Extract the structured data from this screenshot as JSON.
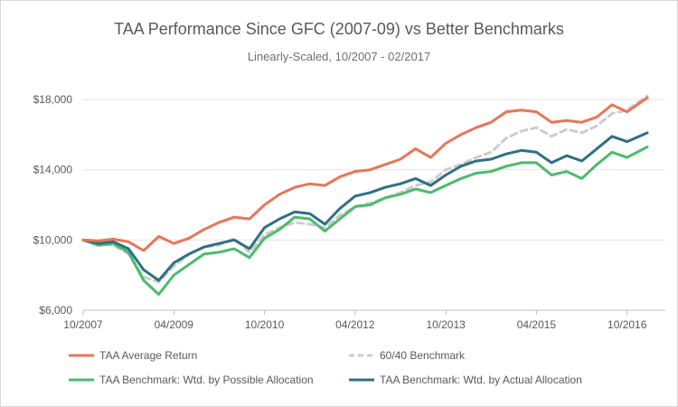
{
  "chart_data": {
    "type": "line",
    "title": "TAA Performance Since GFC (2007-09) vs Better Benchmarks",
    "subtitle": "Linearly-Scaled, 10/2007 - 02/2017",
    "xlabel": "",
    "ylabel": "",
    "x_ticks": [
      "10/2007",
      "04/2009",
      "10/2010",
      "04/2012",
      "10/2013",
      "04/2015",
      "10/2016"
    ],
    "y_ticks": [
      "$6,000",
      "$10,000",
      "$14,000",
      "$18,000"
    ],
    "ylim": [
      6000,
      18000
    ],
    "xlim": [
      "10/2007",
      "02/2017"
    ],
    "grid": "horizontal",
    "legend": "bottom",
    "x": [
      "10/2007",
      "01/2008",
      "04/2008",
      "07/2008",
      "10/2008",
      "01/2009",
      "04/2009",
      "07/2009",
      "10/2009",
      "01/2010",
      "04/2010",
      "07/2010",
      "10/2010",
      "01/2011",
      "04/2011",
      "07/2011",
      "10/2011",
      "01/2012",
      "04/2012",
      "07/2012",
      "10/2012",
      "01/2013",
      "04/2013",
      "07/2013",
      "10/2013",
      "01/2014",
      "04/2014",
      "07/2014",
      "10/2014",
      "01/2015",
      "04/2015",
      "07/2015",
      "10/2015",
      "01/2016",
      "04/2016",
      "07/2016",
      "10/2016",
      "02/2017"
    ],
    "series": [
      {
        "name": "TAA Average Return",
        "color": "#e97558",
        "dash": "solid",
        "values": [
          10000,
          9950,
          10050,
          9900,
          9400,
          10200,
          9800,
          10100,
          10600,
          11000,
          11300,
          11200,
          12000,
          12600,
          13000,
          13200,
          13100,
          13600,
          13900,
          14000,
          14300,
          14600,
          15200,
          14700,
          15500,
          16000,
          16400,
          16700,
          17300,
          17400,
          17300,
          16700,
          16800,
          16700,
          17000,
          17700,
          17300,
          18100
        ]
      },
      {
        "name": "60/40 Benchmark",
        "color": "#cccccc",
        "dash": "dashed",
        "values": [
          10000,
          9800,
          9700,
          9200,
          7900,
          7600,
          8500,
          9200,
          9600,
          9700,
          10100,
          9300,
          10300,
          10700,
          11000,
          10900,
          10700,
          11400,
          11900,
          12100,
          12400,
          12700,
          13100,
          13300,
          14000,
          14300,
          14700,
          15000,
          15800,
          16200,
          16400,
          15900,
          16300,
          16100,
          16500,
          17200,
          17400,
          18200
        ]
      },
      {
        "name": "TAA Benchmark: Wtd. by Possible Allocation",
        "color": "#4cbb6c",
        "dash": "solid",
        "values": [
          10000,
          9700,
          9800,
          9300,
          7700,
          6900,
          8000,
          8600,
          9200,
          9300,
          9500,
          9000,
          10100,
          10600,
          11300,
          11200,
          10500,
          11200,
          11900,
          12000,
          12400,
          12600,
          12900,
          12700,
          13100,
          13500,
          13800,
          13900,
          14200,
          14400,
          14400,
          13700,
          13900,
          13500,
          14300,
          15000,
          14700,
          15300
        ]
      },
      {
        "name": "TAA Benchmark: Wtd. by Actual Allocation",
        "color": "#2e7086",
        "dash": "solid",
        "values": [
          10000,
          9800,
          9900,
          9500,
          8300,
          7700,
          8700,
          9200,
          9600,
          9800,
          10000,
          9500,
          10700,
          11200,
          11600,
          11500,
          10900,
          11800,
          12500,
          12700,
          13000,
          13200,
          13500,
          13100,
          13700,
          14200,
          14500,
          14600,
          14900,
          15100,
          15000,
          14400,
          14800,
          14500,
          15200,
          15900,
          15600,
          16100
        ]
      }
    ]
  }
}
